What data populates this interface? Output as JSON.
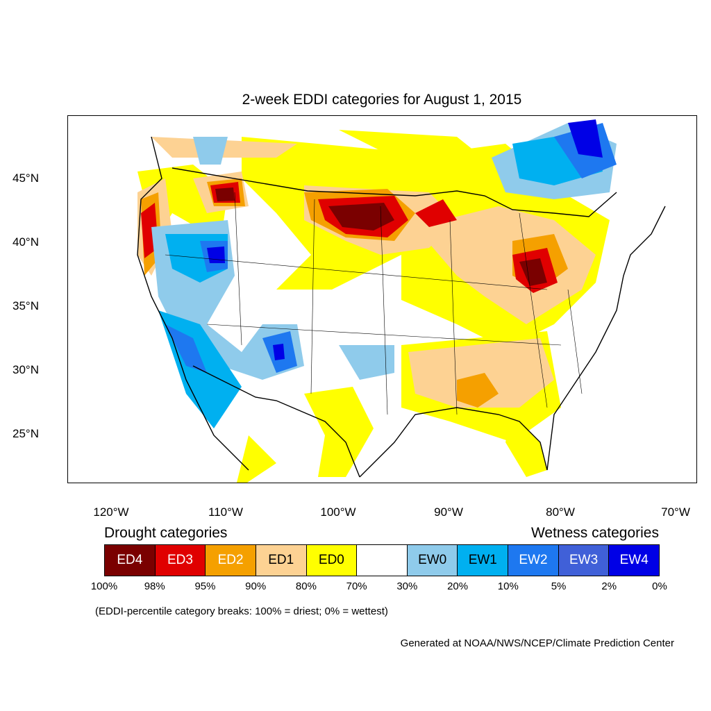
{
  "title": "2-week EDDI categories for August 1, 2015",
  "lat_labels": [
    "45°N",
    "40°N",
    "35°N",
    "30°N",
    "25°N"
  ],
  "lon_labels": [
    "120°W",
    "110°W",
    "100°W",
    "90°W",
    "80°W",
    "70°W"
  ],
  "legend": {
    "drought_heading": "Drought categories",
    "wetness_heading": "Wetness categories",
    "categories": [
      {
        "label": "ED4",
        "color": "#7a0000",
        "text_color": "#ffffff"
      },
      {
        "label": "ED3",
        "color": "#e00000",
        "text_color": "#ffffff"
      },
      {
        "label": "ED2",
        "color": "#f5a000",
        "text_color": "#ffffff"
      },
      {
        "label": "ED1",
        "color": "#fdd293",
        "text_color": "#000000"
      },
      {
        "label": "ED0",
        "color": "#ffff00",
        "text_color": "#000000"
      },
      {
        "label": "",
        "color": "#ffffff",
        "text_color": "#000000"
      },
      {
        "label": "EW0",
        "color": "#8fcbeb",
        "text_color": "#000000"
      },
      {
        "label": "EW1",
        "color": "#00b0f0",
        "text_color": "#000000"
      },
      {
        "label": "EW2",
        "color": "#1e78f0",
        "text_color": "#ffffff"
      },
      {
        "label": "EW3",
        "color": "#4060d8",
        "text_color": "#ffffff"
      },
      {
        "label": "EW4",
        "color": "#0000e6",
        "text_color": "#ffffff"
      }
    ],
    "breaks": [
      "100%",
      "98%",
      "95%",
      "90%",
      "80%",
      "70%",
      "30%",
      "20%",
      "10%",
      "5%",
      "2%",
      "0%"
    ]
  },
  "note": "(EDDI-percentile category breaks: 100% = driest; 0% = wettest)",
  "credit": "Generated at NOAA/NWS/NCEP/Climate Prediction Center"
}
